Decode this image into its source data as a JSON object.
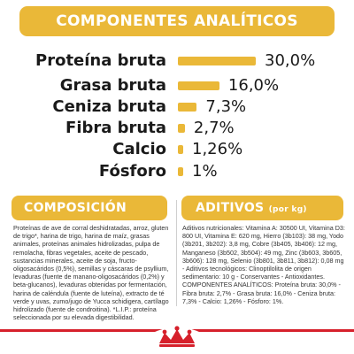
{
  "header": {
    "title": "COMPONENTES ANALÍTICOS"
  },
  "nutrients": [
    {
      "label": "Proteína bruta",
      "value": "30,0%",
      "percent": 30.0
    },
    {
      "label": "Grasa bruta",
      "value": "16,0%",
      "percent": 16.0
    },
    {
      "label": "Ceniza bruta",
      "value": "7,3%",
      "percent": 7.3
    },
    {
      "label": "Fibra bruta",
      "value": "2,7%",
      "percent": 2.7
    },
    {
      "label": "Calcio",
      "value": "1,26%",
      "percent": 1.26
    },
    {
      "label": "Fósforo",
      "value": "1%",
      "percent": 1.0
    }
  ],
  "composicion": {
    "title": "COMPOSICIÓN",
    "text": "Proteínas de ave de corral deshidratadas, arroz, gluten de trigo*, harina de trigo, harina de maíz, grasas animales, proteínas animales hidrolizadas, pulpa de remolacha, fibras vegetales, aceite de pescado, sustancias minerales, aceite de soja, fructo-oligosacáridos (0,5%), semillas y cáscaras de psyllium, levaduras (fuente de manano-oligosacáridos (0,2%) y beta-glucanos), levaduras obtenidas por fermentación, harina de caléndula (fuente de luteína), extracto de té verde y uvas, zumo/jugo de Yucca schidigera, cartílago hidrolizado (fuente de condroitina). *L.I.P.: proteína seleccionada por su elevada digestibilidad."
  },
  "aditivos": {
    "title": "ADITIVOS",
    "subtitle": "(por kg)",
    "text": "Aditivos nutricionales: Vitamina A: 30500 UI, Vitamina D3: 800 UI, Vitamina E: 620 mg, Hierro (3b103): 38 mg, Yodo (3b201, 3b202): 3,8 mg, Cobre (3b405, 3b406): 12 mg, Manganeso (3b502, 3b504): 49 mg, Zinc (3b603, 3b605, 3b606): 128 mg, Selenio (3b801, 3b811, 3b812): 0,08 mg - Aditivos tecnológicos: Clinoptilolita de origen sedimentario: 10 g - Conservantes - Antioxidantes. COMPONENTES ANALÍTICOS: Proteína bruta: 30,0% - Fibra bruta: 2,7% - Grasa bruta: 16,0% - Ceniza bruta: 7,3% - Calcio: 1,26% - Fósforo: 1%."
  },
  "brand_colors": {
    "gold": "#eab838",
    "red": "#d6202b"
  },
  "logo": {
    "name": "crown-logo-icon",
    "text": "ROYAL CANIN"
  }
}
